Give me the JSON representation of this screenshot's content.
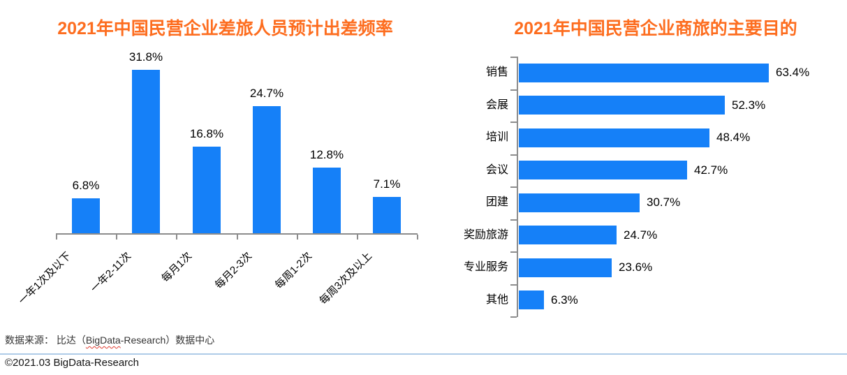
{
  "colors": {
    "bar_blue": "#1580f8",
    "title_orange": "#fd6d1f",
    "axis_gray": "#8c8c8c",
    "divider_blue": "#aecbe8",
    "spellcheck_red": "#e03c31"
  },
  "chart_data": [
    {
      "type": "bar",
      "orientation": "vertical",
      "title": "2021年中国民营企业差旅人员预计出差频率",
      "categories": [
        "一年1次及以下",
        "一年2-11次",
        "每月1次",
        "每月2-3次",
        "每周1-2次",
        "每周3次及以上"
      ],
      "values": [
        6.8,
        31.8,
        16.8,
        24.7,
        12.8,
        7.1
      ],
      "value_labels": [
        "6.8%",
        "31.8%",
        "16.8%",
        "24.7%",
        "12.8%",
        "7.1%"
      ],
      "ylim": [
        0,
        35
      ],
      "grid": false,
      "legend": "none",
      "x_label_rotation_deg": -45
    },
    {
      "type": "bar",
      "orientation": "horizontal",
      "title": "2021年中国民营企业商旅的主要目的",
      "categories": [
        "销售",
        "会展",
        "培训",
        "会议",
        "团建",
        "奖励旅游",
        "专业服务",
        "其他"
      ],
      "values": [
        63.4,
        52.3,
        48.4,
        42.7,
        30.7,
        24.7,
        23.6,
        6.3
      ],
      "value_labels": [
        "63.4%",
        "52.3%",
        "48.4%",
        "42.7%",
        "30.7%",
        "24.7%",
        "23.6%",
        "6.3%"
      ],
      "xlim": [
        0,
        70
      ],
      "grid": false,
      "legend": "none"
    }
  ],
  "footer": {
    "source_prefix": "数据来源： 比达（",
    "source_spellchecked_word": "BigData",
    "source_suffix": "-Research）数据中心",
    "copyright": "©2021.03 BigData-Research"
  }
}
